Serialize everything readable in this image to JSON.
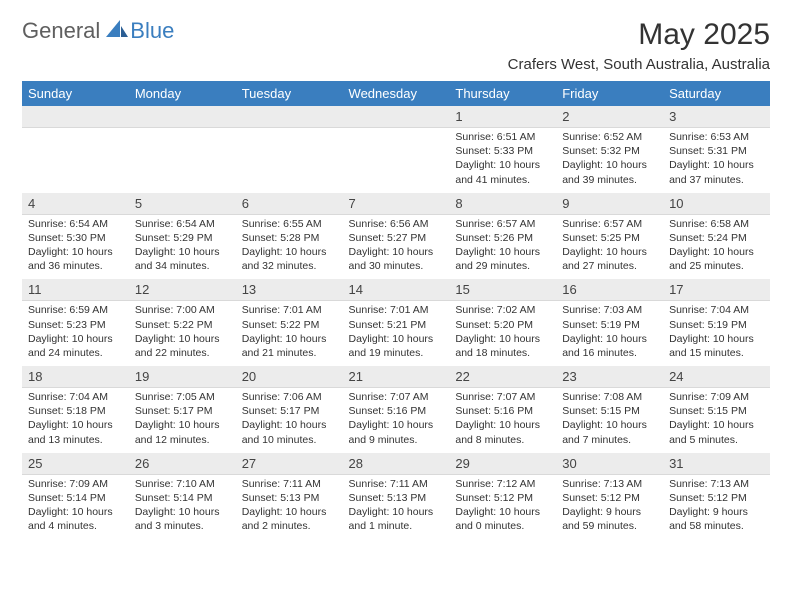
{
  "logo": {
    "general": "General",
    "blue": "Blue"
  },
  "title": "May 2025",
  "location": "Crafers West, South Australia, Australia",
  "colors": {
    "header_bg": "#3a7ebf",
    "header_text": "#ffffff",
    "date_bg": "#ececec",
    "page_bg": "#ffffff",
    "text": "#333333",
    "logo_gray": "#5f5f5f",
    "logo_blue": "#3a7ebf"
  },
  "day_names": [
    "Sunday",
    "Monday",
    "Tuesday",
    "Wednesday",
    "Thursday",
    "Friday",
    "Saturday"
  ],
  "weeks": [
    [
      null,
      null,
      null,
      null,
      {
        "d": "1",
        "sr": "6:51 AM",
        "ss": "5:33 PM",
        "dl": "10 hours and 41 minutes."
      },
      {
        "d": "2",
        "sr": "6:52 AM",
        "ss": "5:32 PM",
        "dl": "10 hours and 39 minutes."
      },
      {
        "d": "3",
        "sr": "6:53 AM",
        "ss": "5:31 PM",
        "dl": "10 hours and 37 minutes."
      }
    ],
    [
      {
        "d": "4",
        "sr": "6:54 AM",
        "ss": "5:30 PM",
        "dl": "10 hours and 36 minutes."
      },
      {
        "d": "5",
        "sr": "6:54 AM",
        "ss": "5:29 PM",
        "dl": "10 hours and 34 minutes."
      },
      {
        "d": "6",
        "sr": "6:55 AM",
        "ss": "5:28 PM",
        "dl": "10 hours and 32 minutes."
      },
      {
        "d": "7",
        "sr": "6:56 AM",
        "ss": "5:27 PM",
        "dl": "10 hours and 30 minutes."
      },
      {
        "d": "8",
        "sr": "6:57 AM",
        "ss": "5:26 PM",
        "dl": "10 hours and 29 minutes."
      },
      {
        "d": "9",
        "sr": "6:57 AM",
        "ss": "5:25 PM",
        "dl": "10 hours and 27 minutes."
      },
      {
        "d": "10",
        "sr": "6:58 AM",
        "ss": "5:24 PM",
        "dl": "10 hours and 25 minutes."
      }
    ],
    [
      {
        "d": "11",
        "sr": "6:59 AM",
        "ss": "5:23 PM",
        "dl": "10 hours and 24 minutes."
      },
      {
        "d": "12",
        "sr": "7:00 AM",
        "ss": "5:22 PM",
        "dl": "10 hours and 22 minutes."
      },
      {
        "d": "13",
        "sr": "7:01 AM",
        "ss": "5:22 PM",
        "dl": "10 hours and 21 minutes."
      },
      {
        "d": "14",
        "sr": "7:01 AM",
        "ss": "5:21 PM",
        "dl": "10 hours and 19 minutes."
      },
      {
        "d": "15",
        "sr": "7:02 AM",
        "ss": "5:20 PM",
        "dl": "10 hours and 18 minutes."
      },
      {
        "d": "16",
        "sr": "7:03 AM",
        "ss": "5:19 PM",
        "dl": "10 hours and 16 minutes."
      },
      {
        "d": "17",
        "sr": "7:04 AM",
        "ss": "5:19 PM",
        "dl": "10 hours and 15 minutes."
      }
    ],
    [
      {
        "d": "18",
        "sr": "7:04 AM",
        "ss": "5:18 PM",
        "dl": "10 hours and 13 minutes."
      },
      {
        "d": "19",
        "sr": "7:05 AM",
        "ss": "5:17 PM",
        "dl": "10 hours and 12 minutes."
      },
      {
        "d": "20",
        "sr": "7:06 AM",
        "ss": "5:17 PM",
        "dl": "10 hours and 10 minutes."
      },
      {
        "d": "21",
        "sr": "7:07 AM",
        "ss": "5:16 PM",
        "dl": "10 hours and 9 minutes."
      },
      {
        "d": "22",
        "sr": "7:07 AM",
        "ss": "5:16 PM",
        "dl": "10 hours and 8 minutes."
      },
      {
        "d": "23",
        "sr": "7:08 AM",
        "ss": "5:15 PM",
        "dl": "10 hours and 7 minutes."
      },
      {
        "d": "24",
        "sr": "7:09 AM",
        "ss": "5:15 PM",
        "dl": "10 hours and 5 minutes."
      }
    ],
    [
      {
        "d": "25",
        "sr": "7:09 AM",
        "ss": "5:14 PM",
        "dl": "10 hours and 4 minutes."
      },
      {
        "d": "26",
        "sr": "7:10 AM",
        "ss": "5:14 PM",
        "dl": "10 hours and 3 minutes."
      },
      {
        "d": "27",
        "sr": "7:11 AM",
        "ss": "5:13 PM",
        "dl": "10 hours and 2 minutes."
      },
      {
        "d": "28",
        "sr": "7:11 AM",
        "ss": "5:13 PM",
        "dl": "10 hours and 1 minute."
      },
      {
        "d": "29",
        "sr": "7:12 AM",
        "ss": "5:12 PM",
        "dl": "10 hours and 0 minutes."
      },
      {
        "d": "30",
        "sr": "7:13 AM",
        "ss": "5:12 PM",
        "dl": "9 hours and 59 minutes."
      },
      {
        "d": "31",
        "sr": "7:13 AM",
        "ss": "5:12 PM",
        "dl": "9 hours and 58 minutes."
      }
    ]
  ],
  "labels": {
    "sunrise": "Sunrise: ",
    "sunset": "Sunset: ",
    "daylight": "Daylight: "
  }
}
